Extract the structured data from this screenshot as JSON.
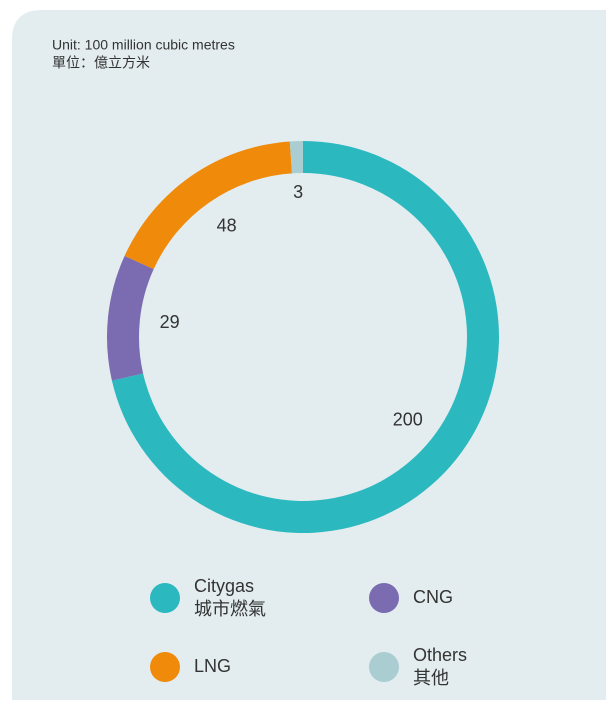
{
  "chart_data": {
    "type": "donut",
    "subtitle": [
      "Unit: 100 million cubic metres",
      "單位：億立方米"
    ],
    "categories": [
      "Citygas",
      "CNG",
      "LNG",
      "Others"
    ],
    "categories_zh": [
      "城市燃氣",
      null,
      null,
      "其他"
    ],
    "values": [
      200,
      29,
      48,
      3
    ],
    "colors": [
      "#2bb8bf",
      "#7b6bb0",
      "#f08a0a",
      "#a9cdd1"
    ]
  }
}
